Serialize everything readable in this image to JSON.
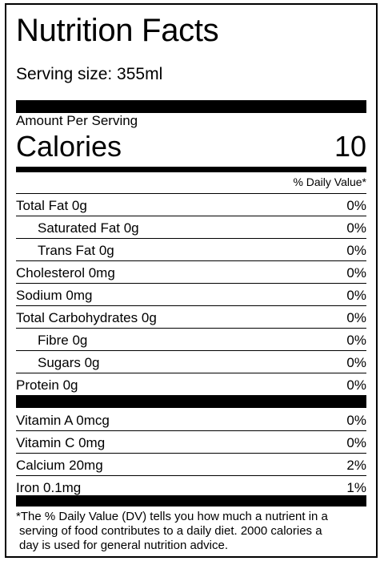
{
  "label": {
    "title": "Nutrition Facts",
    "serving_size": "Serving size: 355ml",
    "amount_per_serving": "Amount Per Serving",
    "calories_label": "Calories",
    "calories_value": "10",
    "daily_value_header": "% Daily Value*"
  },
  "nutrients": [
    {
      "name": "Total Fat 0g",
      "dv": "0%"
    },
    {
      "name": "Saturated Fat 0g",
      "dv": "0%"
    },
    {
      "name": "Trans Fat 0g",
      "dv": "0%"
    },
    {
      "name": "Cholesterol 0mg",
      "dv": "0%"
    },
    {
      "name": "Sodium 0mg",
      "dv": "0%"
    },
    {
      "name": "Total Carbohydrates 0g",
      "dv": "0%"
    },
    {
      "name": "Fibre 0g",
      "dv": "0%"
    },
    {
      "name": "Sugars 0g",
      "dv": "0%"
    },
    {
      "name": "Protein 0g",
      "dv": "0%"
    }
  ],
  "vitamins": [
    {
      "name": "Vitamin A 0mcg",
      "dv": "0%"
    },
    {
      "name": "Vitamin C 0mg",
      "dv": "0%"
    },
    {
      "name": "Calcium 20mg",
      "dv": "2%"
    },
    {
      "name": "Iron 0.1mg",
      "dv": "1%"
    }
  ],
  "footnote": {
    "line1": "*The % Daily Value (DV) tells you how much a nutrient in a",
    "line2": "serving of food contributes to a daily diet. 2000 calories a",
    "line3": "day is used for general nutrition advice."
  }
}
